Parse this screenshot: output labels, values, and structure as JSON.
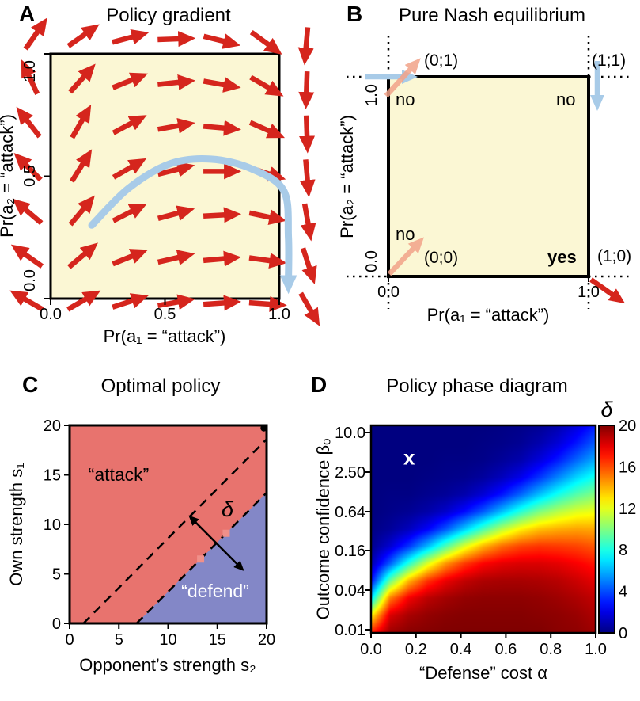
{
  "colors": {
    "background": "#ffffff",
    "quiver_red": "#d5251d",
    "light_blue": "#a8cbe8",
    "faded_salmon": "#f2a389",
    "panel_yellow": "#fbf7d4",
    "attack_red": "#e8736e",
    "defend_blue": "#8387c7",
    "marker_pink": "#f0908a",
    "axis_black": "#000000",
    "heat_marker_white": "#ffffff"
  },
  "chart_data": [
    {
      "id": "A",
      "panel_letter": "A",
      "type": "quiver",
      "title": "Policy gradient",
      "xlabel": "Pr(a₁ = “attack”)",
      "ylabel": "Pr(a₂ = “attack”)",
      "xlim": [
        0,
        1
      ],
      "ylim": [
        0,
        1
      ],
      "xtick_values": [
        0,
        0.5,
        1
      ],
      "xtick_labels": [
        "0.0",
        "0.5",
        "1.0"
      ],
      "ytick_values": [
        0,
        0.5,
        1
      ],
      "ytick_labels": [
        "0.0",
        "0.5",
        "1.0"
      ],
      "arrows_xy_angle": [
        [
          -0.08,
          -0.02,
          150
        ],
        [
          0.12,
          -0.02,
          30
        ],
        [
          0.32,
          -0.02,
          18
        ],
        [
          0.52,
          -0.02,
          10
        ],
        [
          0.72,
          -0.02,
          4
        ],
        [
          0.92,
          -0.02,
          -4
        ],
        [
          1.12,
          -0.02,
          -60
        ],
        [
          -0.08,
          0.16,
          145
        ],
        [
          0.12,
          0.16,
          40
        ],
        [
          0.32,
          0.16,
          22
        ],
        [
          0.52,
          0.16,
          13
        ],
        [
          0.72,
          0.16,
          5
        ],
        [
          0.92,
          0.16,
          -8
        ],
        [
          1.12,
          0.16,
          -72
        ],
        [
          -0.08,
          0.34,
          140
        ],
        [
          0.12,
          0.34,
          50
        ],
        [
          0.32,
          0.34,
          27
        ],
        [
          0.52,
          0.34,
          15
        ],
        [
          0.72,
          0.34,
          3
        ],
        [
          0.92,
          0.34,
          -12
        ],
        [
          1.12,
          0.34,
          -80
        ],
        [
          -0.08,
          0.52,
          135
        ],
        [
          0.12,
          0.52,
          58
        ],
        [
          0.32,
          0.52,
          30
        ],
        [
          0.52,
          0.52,
          14
        ],
        [
          0.72,
          0.52,
          0
        ],
        [
          0.92,
          0.52,
          -18
        ],
        [
          1.12,
          0.52,
          -85
        ],
        [
          -0.08,
          0.7,
          128
        ],
        [
          0.12,
          0.7,
          60
        ],
        [
          0.32,
          0.7,
          28
        ],
        [
          0.52,
          0.7,
          10
        ],
        [
          0.72,
          0.7,
          -5
        ],
        [
          0.92,
          0.7,
          -24
        ],
        [
          1.12,
          0.7,
          -88
        ],
        [
          -0.08,
          0.88,
          115
        ],
        [
          0.12,
          0.88,
          48
        ],
        [
          0.32,
          0.88,
          22
        ],
        [
          0.52,
          0.88,
          6
        ],
        [
          0.72,
          0.88,
          -10
        ],
        [
          0.92,
          0.88,
          -30
        ],
        [
          1.12,
          0.88,
          -92
        ],
        [
          -0.08,
          1.06,
          55
        ],
        [
          0.12,
          1.06,
          35
        ],
        [
          0.32,
          1.06,
          15
        ],
        [
          0.52,
          1.06,
          2
        ],
        [
          0.72,
          1.06,
          -14
        ],
        [
          0.92,
          1.06,
          -36
        ],
        [
          1.12,
          1.06,
          -95
        ]
      ],
      "trajectory": [
        [
          0.18,
          0.3
        ],
        [
          0.34,
          0.45
        ],
        [
          0.52,
          0.55
        ],
        [
          0.7,
          0.57
        ],
        [
          0.88,
          0.53
        ],
        [
          1.02,
          0.44
        ],
        [
          1.04,
          0.25
        ],
        [
          1.04,
          0.08
        ]
      ]
    },
    {
      "id": "B",
      "panel_letter": "B",
      "type": "diagram",
      "title": "Pure Nash equilibrium",
      "xlabel": "Pr(a₁ = “attack”)",
      "ylabel": "Pr(a₂ = “attack”)",
      "xtick_labels": [
        "0.0",
        "1.0"
      ],
      "ytick_labels": [
        "0.0",
        "1.0"
      ],
      "corners": [
        {
          "name": "(0;1)",
          "equilibrium": "no"
        },
        {
          "name": "(1;1)",
          "equilibrium": "no"
        },
        {
          "name": "(0;0)",
          "equilibrium": "no"
        },
        {
          "name": "(1;0)",
          "equilibrium": "yes"
        }
      ]
    },
    {
      "id": "C",
      "panel_letter": "C",
      "type": "region-map",
      "title": "Optimal policy",
      "xlabel": "Opponent’s strength s₂",
      "ylabel": "Own strength s₁",
      "xlim": [
        0,
        20
      ],
      "ylim": [
        0,
        20
      ],
      "xtick_values": [
        0,
        5,
        10,
        15,
        20
      ],
      "xtick_labels": [
        "0",
        "5",
        "10",
        "15",
        "20"
      ],
      "ytick_values": [
        0,
        5,
        10,
        15,
        20
      ],
      "ytick_labels": [
        "0",
        "5",
        "10",
        "15",
        "20"
      ],
      "attack_label": "“attack”",
      "defend_label": "“defend”",
      "band_label": "δ",
      "boundary_upper_x_intercept": 1.4,
      "boundary_lower_x_intercept": 6.8,
      "boundary_slope": 1,
      "band_marker_points": [
        [
          13.3,
          6.5
        ],
        [
          15.9,
          9.1
        ]
      ],
      "corner_dot": [
        20,
        20
      ]
    },
    {
      "id": "D",
      "panel_letter": "D",
      "type": "heatmap",
      "title": "Policy phase diagram",
      "xlabel": "“Defense” cost α",
      "ylabel": "Outcome confidence βₒ",
      "xtick_values": [
        0,
        0.2,
        0.4,
        0.6,
        0.8,
        1
      ],
      "xtick_labels": [
        "0.0",
        "0.2",
        "0.4",
        "0.6",
        "0.8",
        "1.0"
      ],
      "ytick_labels_bottom_to_top": [
        "0.01",
        "0.04",
        "0.16",
        "0.64",
        "2.50",
        "10.0"
      ],
      "colorbar": {
        "label": "δ",
        "min": 0,
        "max": 20,
        "tick_values": [
          0,
          4,
          8,
          12,
          16,
          20
        ]
      },
      "marker": {
        "label": "x",
        "alpha": 0.17,
        "beta": 3.5
      },
      "grid_alphas": [
        0,
        0.083,
        0.167,
        0.25,
        0.333,
        0.417,
        0.5,
        0.583,
        0.667,
        0.75,
        0.833,
        0.917,
        1
      ],
      "grid_betas_bottom_to_top": [
        0.01,
        0.018,
        0.032,
        0.056,
        0.1,
        0.18,
        0.32,
        0.56,
        1.0,
        1.8,
        3.2,
        5.6,
        10.0
      ],
      "delta_grid_rows_top_to_bottom": [
        [
          0,
          0,
          0,
          0,
          0,
          0,
          0,
          0.1,
          0.2,
          0.4,
          0.9,
          1.8,
          3.0
        ],
        [
          0,
          0,
          0,
          0,
          0,
          0,
          0.1,
          0.2,
          0.4,
          0.9,
          1.7,
          2.9,
          4.3
        ],
        [
          0,
          0,
          0,
          0,
          0.1,
          0.1,
          0.2,
          0.5,
          0.9,
          1.8,
          3.0,
          4.5,
          5.9
        ],
        [
          0,
          0,
          0,
          0.1,
          0.2,
          0.3,
          0.6,
          1.2,
          2.1,
          3.5,
          5.1,
          6.7,
          7.9
        ],
        [
          0,
          0.1,
          0.1,
          0.3,
          0.5,
          0.9,
          1.7,
          2.9,
          4.5,
          6.3,
          7.9,
          9.2,
          10.1
        ],
        [
          0,
          0.2,
          0.4,
          0.8,
          1.5,
          2.7,
          4.3,
          6.3,
          8.3,
          10.0,
          11.1,
          11.9,
          12.2
        ],
        [
          0.1,
          0.5,
          1.2,
          2.4,
          4.2,
          6.5,
          8.9,
          11.1,
          12.7,
          13.7,
          14.1,
          14.3,
          14.2
        ],
        [
          0.3,
          1.6,
          3.5,
          6.1,
          9.1,
          11.9,
          14.0,
          15.4,
          16.2,
          16.5,
          16.4,
          16.2,
          15.8
        ],
        [
          0.9,
          4.3,
          8.2,
          11.8,
          14.6,
          16.4,
          17.5,
          18.0,
          18.2,
          18.2,
          18.0,
          17.6,
          17.1
        ],
        [
          2.7,
          9.5,
          13.9,
          16.5,
          17.9,
          18.7,
          19.1,
          19.2,
          19.2,
          19.1,
          18.9,
          18.5,
          18.0
        ],
        [
          6.8,
          15.0,
          17.7,
          18.8,
          19.3,
          19.6,
          19.7,
          19.7,
          19.7,
          19.6,
          19.4,
          19.1,
          18.7
        ],
        [
          12.6,
          18.2,
          19.2,
          19.6,
          19.8,
          19.9,
          19.9,
          19.9,
          19.9,
          19.8,
          19.7,
          19.5,
          19.1
        ],
        [
          17.0,
          19.4,
          19.8,
          19.9,
          20,
          20,
          20,
          20,
          20,
          20,
          19.8,
          19.7,
          19.4
        ]
      ]
    }
  ]
}
